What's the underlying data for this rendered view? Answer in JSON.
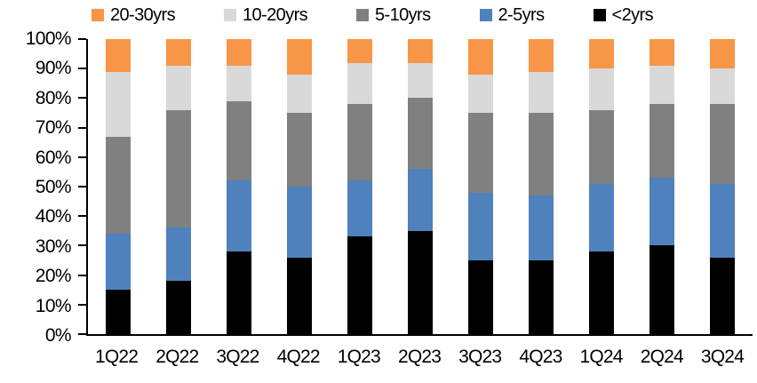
{
  "chart_data": {
    "type": "bar",
    "stacked": true,
    "unit": "percent",
    "title": "",
    "categories": [
      "1Q22",
      "2Q22",
      "3Q22",
      "4Q22",
      "1Q23",
      "2Q23",
      "3Q23",
      "4Q23",
      "1Q24",
      "2Q24",
      "3Q24"
    ],
    "series": [
      {
        "name": "<2yrs",
        "color": "#000000",
        "values": [
          15,
          18,
          28,
          26,
          33,
          35,
          25,
          25,
          28,
          30,
          26
        ]
      },
      {
        "name": "2-5yrs",
        "color": "#4F81BD",
        "values": [
          19,
          18,
          24,
          24,
          19,
          21,
          23,
          22,
          23,
          23,
          25
        ]
      },
      {
        "name": "5-10yrs",
        "color": "#808080",
        "values": [
          33,
          40,
          27,
          25,
          26,
          24,
          27,
          28,
          25,
          25,
          27
        ]
      },
      {
        "name": "10-20yrs",
        "color": "#D9D9D9",
        "values": [
          22,
          15,
          12,
          13,
          14,
          12,
          13,
          14,
          14,
          13,
          12
        ]
      },
      {
        "name": "20-30yrs",
        "color": "#F79646",
        "values": [
          11,
          9,
          9,
          12,
          8,
          8,
          12,
          11,
          10,
          9,
          10
        ]
      }
    ],
    "legend": {
      "position": "top",
      "order": [
        "20-30yrs",
        "10-20yrs",
        "5-10yrs",
        "2-5yrs",
        "<2yrs"
      ]
    },
    "y_axis": {
      "min": 0,
      "max": 100,
      "step": 10,
      "tick_labels": [
        "0%",
        "10%",
        "20%",
        "30%",
        "40%",
        "50%",
        "60%",
        "70%",
        "80%",
        "90%",
        "100%"
      ]
    },
    "x_axis": {
      "tick_labels": [
        "1Q22",
        "2Q22",
        "3Q22",
        "4Q22",
        "1Q23",
        "2Q23",
        "3Q23",
        "4Q23",
        "1Q24",
        "2Q24",
        "3Q24"
      ]
    },
    "grid": false,
    "axis_color": "#000000",
    "background_color": "#FFFFFF"
  }
}
